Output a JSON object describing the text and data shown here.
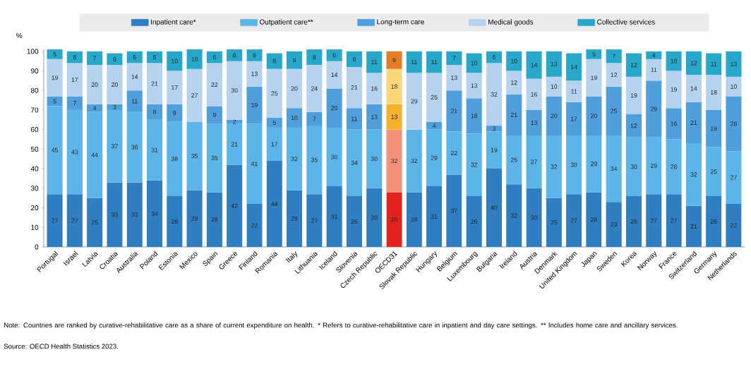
{
  "chart_data": {
    "type": "bar",
    "stacked": true,
    "ylabel": "%",
    "ylim": [
      0,
      101
    ],
    "yticks": [
      0,
      10,
      20,
      30,
      40,
      50,
      60,
      70,
      80,
      90,
      100
    ],
    "legend": "top",
    "data_labels": true,
    "categories": [
      "Portugal",
      "Israel",
      "Latvia",
      "Croatia",
      "Australia",
      "Poland",
      "Estonia",
      "Mexico",
      "Spain",
      "Greece",
      "Finland",
      "Romania",
      "Italy",
      "Lithuania",
      "Iceland",
      "Slovenia",
      "Czech Republic",
      "OECD31",
      "Slovak Republic",
      "Hungary",
      "Belgium",
      "Luxembourg",
      "Bulgaria",
      "Ireland",
      "Austria",
      "Denmark",
      "United Kingdom",
      "Japan",
      "Sweden",
      "Korea",
      "Norway",
      "France",
      "Switzerland",
      "Germany",
      "Netherlands"
    ],
    "series": [
      {
        "name": "Inpatient care*",
        "color": "#2e7ec1",
        "colors": [
          "#2e7ec1",
          "#2e7ec1",
          "#2e7ec1",
          "#2e7ec1",
          "#2e7ec1",
          "#2e7ec1",
          "#2e7ec1",
          "#2e7ec1",
          "#2e7ec1",
          "#2e7ec1",
          "#2e7ec1",
          "#2e7ec1",
          "#2e7ec1",
          "#2e7ec1",
          "#2e7ec1",
          "#2e7ec1",
          "#2e7ec1",
          "#e3221e",
          "#2e7ec1",
          "#2e7ec1",
          "#2e7ec1",
          "#2e7ec1",
          "#2e7ec1",
          "#2e7ec1",
          "#2e7ec1",
          "#2e7ec1",
          "#2e7ec1",
          "#2e7ec1",
          "#2e7ec1",
          "#2e7ec1",
          "#2e7ec1",
          "#2e7ec1",
          "#2e7ec1",
          "#2e7ec1",
          "#2e7ec1"
        ],
        "values": [
          27,
          27,
          25,
          33,
          33,
          34,
          26,
          29,
          28,
          42,
          22,
          44,
          29,
          27,
          31,
          26,
          30,
          28,
          28,
          31,
          37,
          26,
          40,
          32,
          30,
          25,
          27,
          28,
          23,
          26,
          27,
          27,
          21,
          26,
          22
        ]
      },
      {
        "name": "Outpatient care**",
        "color": "#5bb5e8",
        "colors": [
          "#5bb5e8",
          "#5bb5e8",
          "#5bb5e8",
          "#5bb5e8",
          "#5bb5e8",
          "#5bb5e8",
          "#5bb5e8",
          "#5bb5e8",
          "#5bb5e8",
          "#5bb5e8",
          "#5bb5e8",
          "#5bb5e8",
          "#5bb5e8",
          "#5bb5e8",
          "#5bb5e8",
          "#5bb5e8",
          "#5bb5e8",
          "#f4917a",
          "#5bb5e8",
          "#5bb5e8",
          "#5bb5e8",
          "#5bb5e8",
          "#5bb5e8",
          "#5bb5e8",
          "#5bb5e8",
          "#5bb5e8",
          "#5bb5e8",
          "#5bb5e8",
          "#5bb5e8",
          "#5bb5e8",
          "#5bb5e8",
          "#5bb5e8",
          "#5bb5e8",
          "#5bb5e8",
          "#5bb5e8"
        ],
        "values": [
          45,
          43,
          44,
          37,
          36,
          31,
          38,
          35,
          35,
          21,
          41,
          17,
          32,
          35,
          30,
          34,
          30,
          32,
          32,
          29,
          22,
          32,
          19,
          25,
          27,
          32,
          30,
          29,
          34,
          30,
          29,
          28,
          32,
          25,
          27
        ]
      },
      {
        "name": "Long-term care",
        "color": "#4f9fdc",
        "colors": [
          "#4f9fdc",
          "#4f9fdc",
          "#4f9fdc",
          "#4f9fdc",
          "#4f9fdc",
          "#4f9fdc",
          "#4f9fdc",
          "#4f9fdc",
          "#4f9fdc",
          "#4f9fdc",
          "#4f9fdc",
          "#4f9fdc",
          "#4f9fdc",
          "#4f9fdc",
          "#4f9fdc",
          "#4f9fdc",
          "#4f9fdc",
          "#f6b12b",
          "#4f9fdc",
          "#4f9fdc",
          "#4f9fdc",
          "#4f9fdc",
          "#4f9fdc",
          "#4f9fdc",
          "#4f9fdc",
          "#4f9fdc",
          "#4f9fdc",
          "#4f9fdc",
          "#4f9fdc",
          "#4f9fdc",
          "#4f9fdc",
          "#4f9fdc",
          "#4f9fdc",
          "#4f9fdc",
          "#4f9fdc"
        ],
        "values": [
          5,
          7,
          4,
          3,
          11,
          8,
          9,
          null,
          9,
          2,
          19,
          5,
          10,
          7,
          20,
          11,
          13,
          13,
          null,
          4,
          21,
          18,
          3,
          21,
          13,
          20,
          17,
          20,
          25,
          12,
          29,
          16,
          21,
          19,
          28
        ]
      },
      {
        "name": "Medical goods",
        "color": "#b5d3ee",
        "colors": [
          "#b5d3ee",
          "#b5d3ee",
          "#b5d3ee",
          "#b5d3ee",
          "#b5d3ee",
          "#b5d3ee",
          "#b5d3ee",
          "#b5d3ee",
          "#b5d3ee",
          "#b5d3ee",
          "#b5d3ee",
          "#b5d3ee",
          "#b5d3ee",
          "#b5d3ee",
          "#b5d3ee",
          "#b5d3ee",
          "#b5d3ee",
          "#fbd77a",
          "#b5d3ee",
          "#b5d3ee",
          "#b5d3ee",
          "#b5d3ee",
          "#b5d3ee",
          "#b5d3ee",
          "#b5d3ee",
          "#b5d3ee",
          "#b5d3ee",
          "#b5d3ee",
          "#b5d3ee",
          "#b5d3ee",
          "#b5d3ee",
          "#b5d3ee",
          "#b5d3ee",
          "#b5d3ee",
          "#b5d3ee"
        ],
        "values": [
          19,
          17,
          20,
          20,
          14,
          21,
          17,
          27,
          22,
          30,
          13,
          25,
          20,
          24,
          14,
          21,
          16,
          18,
          29,
          25,
          13,
          13,
          32,
          12,
          16,
          10,
          11,
          19,
          12,
          19,
          11,
          19,
          14,
          18,
          10
        ]
      },
      {
        "name": "Collective services",
        "color": "#27a7c9",
        "colors": [
          "#27a7c9",
          "#27a7c9",
          "#27a7c9",
          "#27a7c9",
          "#27a7c9",
          "#27a7c9",
          "#27a7c9",
          "#27a7c9",
          "#27a7c9",
          "#27a7c9",
          "#27a7c9",
          "#27a7c9",
          "#27a7c9",
          "#27a7c9",
          "#27a7c9",
          "#27a7c9",
          "#27a7c9",
          "#e47b25",
          "#27a7c9",
          "#27a7c9",
          "#27a7c9",
          "#27a7c9",
          "#27a7c9",
          "#27a7c9",
          "#27a7c9",
          "#27a7c9",
          "#27a7c9",
          "#27a7c9",
          "#27a7c9",
          "#27a7c9",
          "#27a7c9",
          "#27a7c9",
          "#27a7c9",
          "#27a7c9",
          "#27a7c9"
        ],
        "values": [
          5,
          6,
          7,
          6,
          6,
          6,
          10,
          10,
          6,
          6,
          6,
          8,
          9,
          8,
          6,
          8,
          11,
          9,
          11,
          11,
          7,
          10,
          6,
          10,
          14,
          13,
          14,
          5,
          7,
          12,
          4,
          10,
          12,
          11,
          13
        ]
      }
    ],
    "annotations": [
      "Note: Countries are ranked by curative-rehabilitative care as a share of current expenditure on health.",
      "* Refers to curative-rehabilitative care in inpatient and day care settings.",
      "** Includes home care and ancillary services.",
      "Source: OECD Health Statistics 2023."
    ]
  }
}
